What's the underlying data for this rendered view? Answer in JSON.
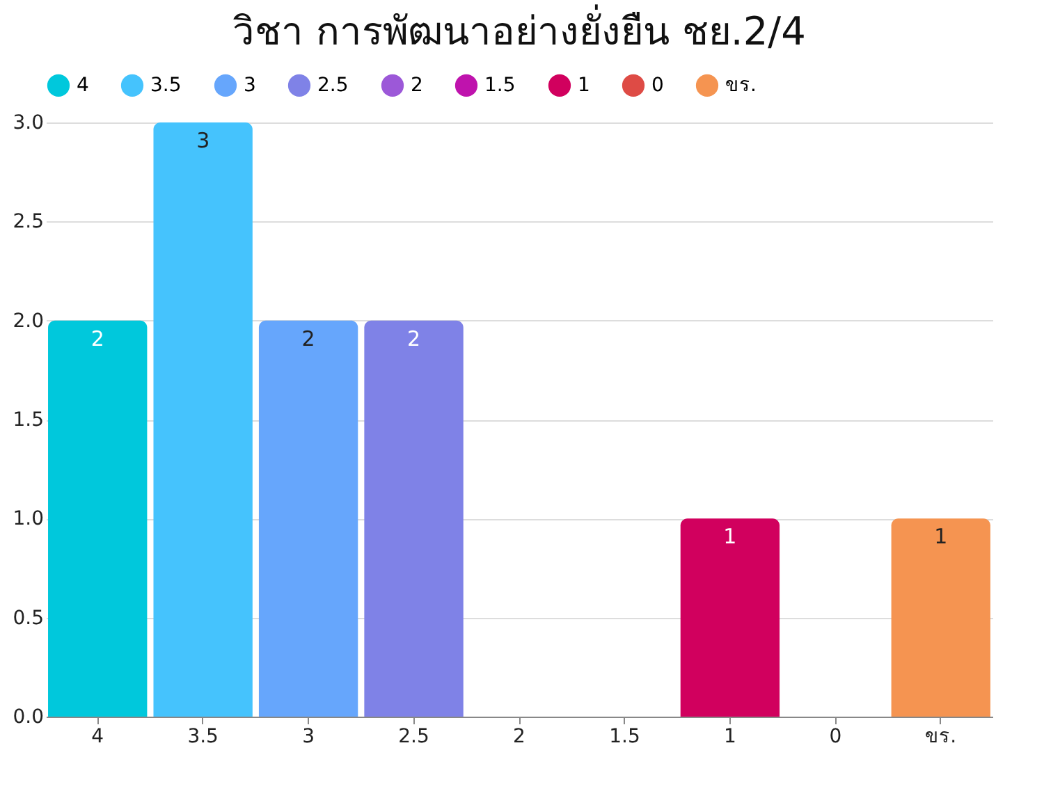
{
  "chart_data": {
    "type": "bar",
    "title": "วิชา การพัฒนาอย่างยั่งยืน ชย.2/4",
    "categories": [
      "4",
      "3.5",
      "3",
      "2.5",
      "2",
      "1.5",
      "1",
      "0",
      "ขร."
    ],
    "series": [
      {
        "name": "4",
        "color": "#00c8dc",
        "values": [
          2,
          null,
          null,
          null,
          null,
          null,
          null,
          null,
          null
        ],
        "value_labels": [
          "2",
          null,
          null,
          null,
          null,
          null,
          null,
          null,
          null
        ]
      },
      {
        "name": "3.5",
        "color": "#45c3fd",
        "values": [
          null,
          3,
          null,
          null,
          null,
          null,
          null,
          null,
          null
        ],
        "value_labels": [
          null,
          "3",
          null,
          null,
          null,
          null,
          null,
          null,
          null
        ]
      },
      {
        "name": "3",
        "color": "#66a6fc",
        "values": [
          null,
          null,
          2,
          null,
          null,
          null,
          null,
          null,
          null
        ],
        "value_labels": [
          null,
          null,
          "2",
          null,
          null,
          null,
          null,
          null,
          null
        ]
      },
      {
        "name": "2.5",
        "color": "#7f82e7",
        "values": [
          null,
          null,
          null,
          2,
          null,
          null,
          null,
          null,
          null
        ],
        "value_labels": [
          null,
          null,
          null,
          "2",
          null,
          null,
          null,
          null,
          null
        ]
      },
      {
        "name": "2",
        "color": "#9c58d8",
        "values": [
          null,
          null,
          null,
          null,
          0,
          null,
          null,
          null,
          null
        ],
        "value_labels": [
          null,
          null,
          null,
          null,
          null,
          null,
          null,
          null,
          null
        ]
      },
      {
        "name": "1.5",
        "color": "#bf13ad",
        "values": [
          null,
          null,
          null,
          null,
          null,
          0,
          null,
          null,
          null
        ],
        "value_labels": [
          null,
          null,
          null,
          null,
          null,
          null,
          null,
          null,
          null
        ]
      },
      {
        "name": "1",
        "color": "#d1005e",
        "values": [
          null,
          null,
          null,
          null,
          null,
          null,
          1,
          null,
          null
        ],
        "value_labels": [
          null,
          null,
          null,
          null,
          null,
          null,
          "1",
          null,
          null
        ]
      },
      {
        "name": "0",
        "color": "#de4b45",
        "values": [
          null,
          null,
          null,
          null,
          null,
          null,
          null,
          0,
          null
        ],
        "value_labels": [
          null,
          null,
          null,
          null,
          null,
          null,
          null,
          null,
          null
        ]
      },
      {
        "name": "ขร.",
        "color": "#f59451",
        "values": [
          null,
          null,
          null,
          null,
          null,
          null,
          null,
          null,
          1
        ],
        "value_labels": [
          null,
          null,
          null,
          null,
          null,
          null,
          null,
          null,
          "1"
        ]
      }
    ],
    "ylim": [
      0,
      3
    ],
    "yticks": [
      {
        "value": 0,
        "label": "0.0"
      },
      {
        "value": 0.5,
        "label": "0.5"
      },
      {
        "value": 1,
        "label": "1.0"
      },
      {
        "value": 1.5,
        "label": "1.5"
      },
      {
        "value": 2,
        "label": "2.0"
      },
      {
        "value": 2.5,
        "label": "2.5"
      },
      {
        "value": 3,
        "label": "3.0"
      }
    ],
    "grid": "y",
    "legend": "top"
  }
}
